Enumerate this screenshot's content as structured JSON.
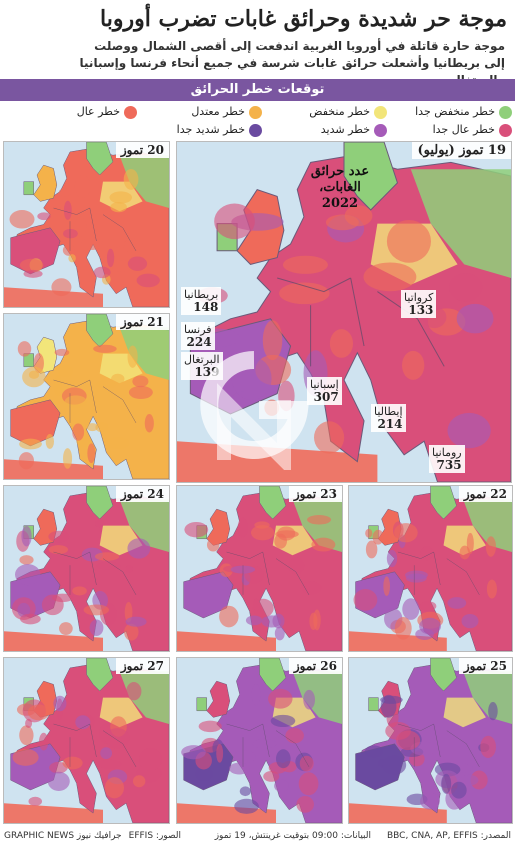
{
  "header": {
    "title": "موجة حر شديدة وحرائق غابات تضرب أوروبا",
    "subtitle": "موجة حارة قاتلة في أوروبا الغربية اندفعت إلى أقصى الشمال ووصلت إلى بريطانيا وأشعلت حرائق غابات شرسة في جميع أنحاء فرنسا وإسبانيا والبرتغال"
  },
  "banner": "توقعات خطر الحرائق",
  "legend": {
    "items": [
      {
        "label": "خطر منخفض جدا",
        "color": "#8fcf7a"
      },
      {
        "label": "خطر منخفض",
        "color": "#f2e57a"
      },
      {
        "label": "خطر معتدل",
        "color": "#f4b24a"
      },
      {
        "label": "خطر عال",
        "color": "#ef6a5a"
      },
      {
        "label": "خطر عال جدا",
        "color": "#d94f7a"
      },
      {
        "label": "خطر شديد",
        "color": "#a55bb8"
      },
      {
        "label": "خطر شديد جدا",
        "color": "#6a4aa0"
      }
    ]
  },
  "main_map": {
    "date": "19 تموز (يوليو)",
    "fires_title": "عدد حرائق الغابات، 2022",
    "countries": [
      {
        "name": "بريطانيا",
        "count": "148"
      },
      {
        "name": "فرنسا",
        "count": "224"
      },
      {
        "name": "البرتغال",
        "count": "139"
      },
      {
        "name": "إسبانيا",
        "count": "307"
      },
      {
        "name": "إيطاليا",
        "count": "214"
      },
      {
        "name": "كرواتيا",
        "count": "133"
      },
      {
        "name": "رومانيا",
        "count": "735"
      }
    ]
  },
  "panels": [
    {
      "date": "20 تموز",
      "level": 3
    },
    {
      "date": "21 تموز",
      "level": 2
    },
    {
      "date": "22 تموز",
      "level": 4
    },
    {
      "date": "23 تموز",
      "level": 4
    },
    {
      "date": "24 تموز",
      "level": 4
    },
    {
      "date": "25 تموز",
      "level": 5
    },
    {
      "date": "26 تموز",
      "level": 5
    },
    {
      "date": "27 تموز",
      "level": 4
    }
  ],
  "footer": {
    "sources": "المصدر: BBC, CNA, AP, EFFIS",
    "data_note": "البيانات: 09:00 بتوقيت غرينتش، 19 تموز",
    "images": "الصور: EFFIS",
    "credit": "جرافيك نيوز GRAPHIC NEWS"
  },
  "colors": {
    "sea": "#cfe3f0",
    "banner": "#7a56a0"
  }
}
